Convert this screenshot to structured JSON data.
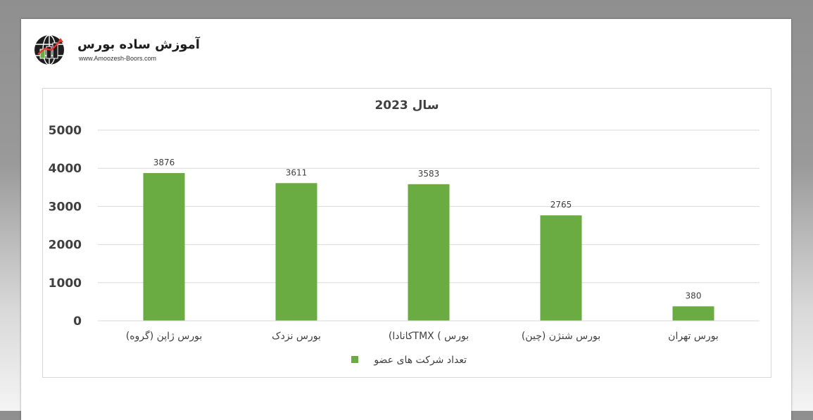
{
  "brand": {
    "name": "آموزش ساده بورس",
    "url": "www.Amoozesh-Boors.com",
    "icon": "globe-chart-icon"
  },
  "chart_data": {
    "type": "bar",
    "title": "سال 2023",
    "categories": [
      "بورس ژاپن (گروه)",
      "بورس نزدک",
      "بورس ) TMXکانادا)",
      "بورس شنژن (چین)",
      "بورس تهران"
    ],
    "series": [
      {
        "name": "تعداد شرکت های عضو",
        "values": [
          3876,
          3611,
          3583,
          2765,
          380
        ],
        "color": "#6aab42"
      }
    ],
    "yticks": [
      0,
      1000,
      2000,
      3000,
      4000,
      5000
    ],
    "ylim": [
      0,
      5000
    ],
    "grid": true,
    "legend": "bottom",
    "data_labels": true
  }
}
